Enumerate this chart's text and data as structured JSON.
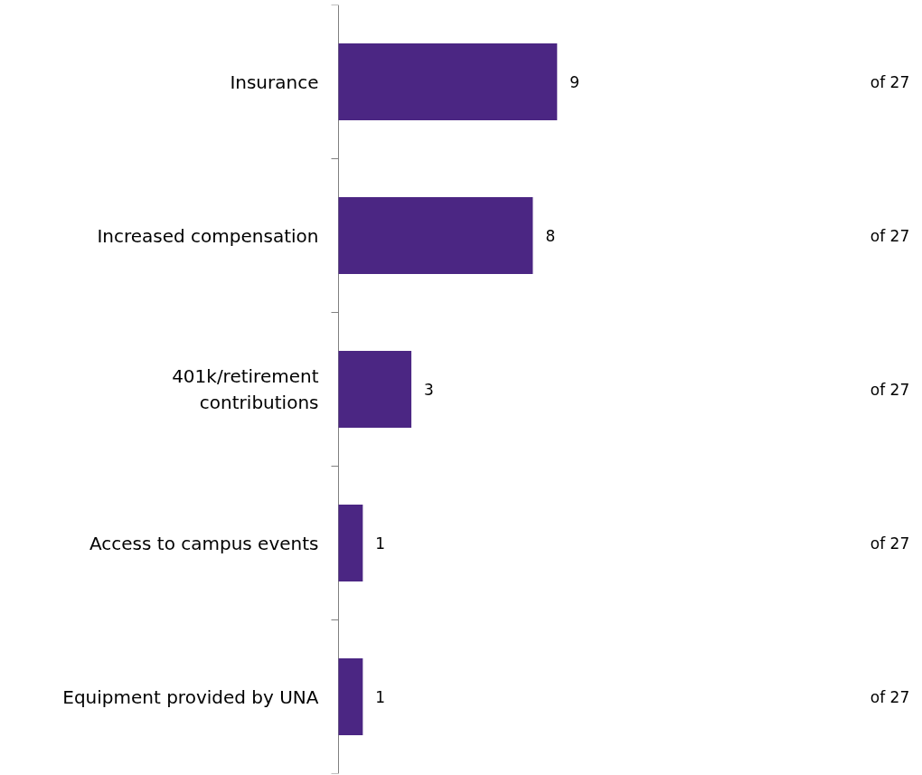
{
  "chart_data": {
    "type": "bar",
    "orientation": "horizontal",
    "categories": [
      "Insurance",
      "Increased compensation",
      "401k/retirement\ncontributions",
      "Access to campus events",
      "Equipment provided by UNA"
    ],
    "values": [
      9,
      8,
      3,
      1,
      1
    ],
    "color": "#4b2683",
    "data_labels": true,
    "annotations": [
      "of 27",
      "of 27",
      "of 27",
      "of 27",
      "of 27"
    ]
  }
}
